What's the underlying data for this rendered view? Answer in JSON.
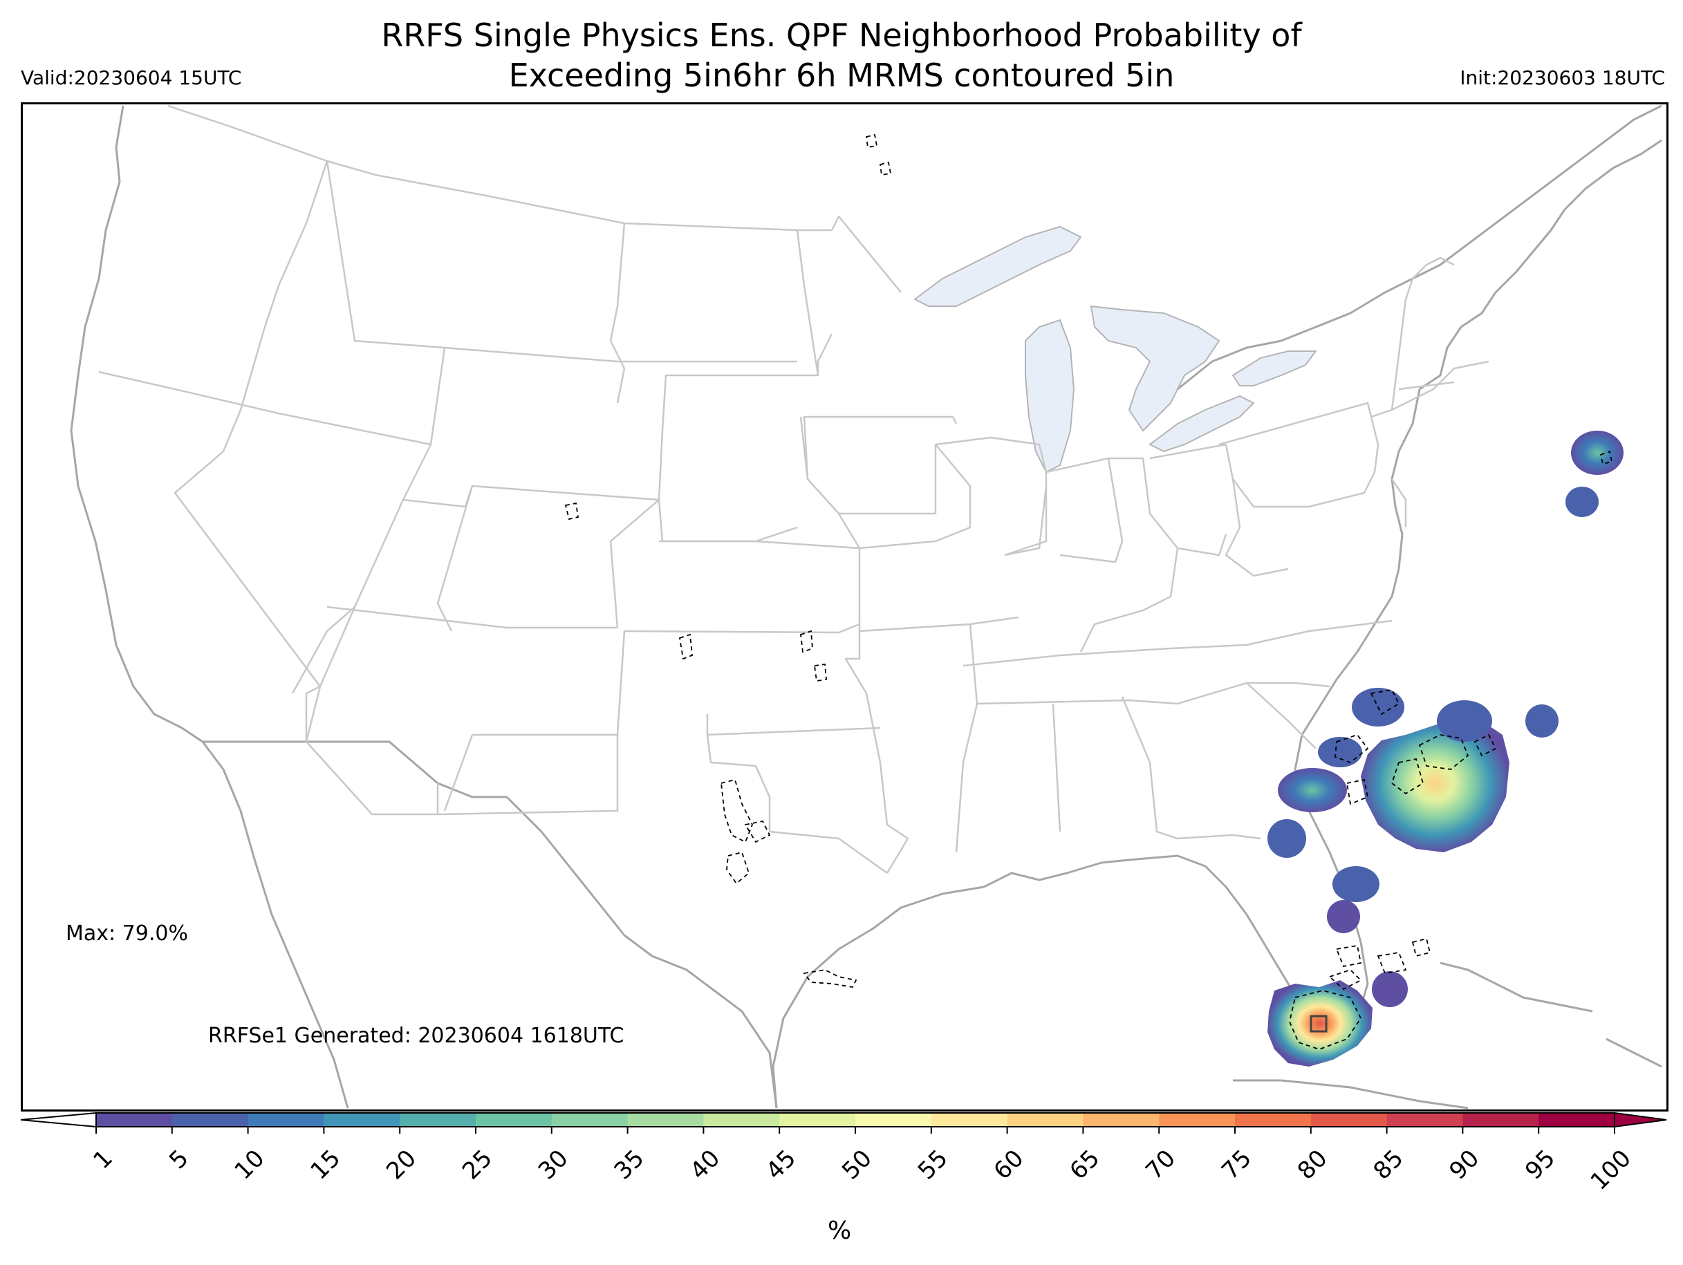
{
  "title_line1": "RRFS Single Physics Ens. QPF Neighborhood Probability of",
  "title_line2": "Exceeding 5in6hr 6h MRMS contoured 5in",
  "valid_label": "Valid:20230604 15UTC",
  "init_label": "Init:20230603 18UTC",
  "max_label": "Max: 79.0%",
  "generated_label": "RRFSe1 Generated: 20230604 1618UTC",
  "colorbar": {
    "unit": "%",
    "ticks": [
      "1",
      "5",
      "10",
      "15",
      "20",
      "25",
      "30",
      "35",
      "40",
      "45",
      "50",
      "55",
      "60",
      "65",
      "70",
      "75",
      "80",
      "85",
      "90",
      "95",
      "100"
    ],
    "colors": [
      "#5e4fa2",
      "#4a61ab",
      "#3e7bb8",
      "#3f96b7",
      "#54aeab",
      "#6cc4a4",
      "#89d1a4",
      "#a8dda2",
      "#c8e99e",
      "#e3f3a0",
      "#f6f9ae",
      "#fee99b",
      "#fdd282",
      "#fcb66c",
      "#f99556",
      "#f2744a",
      "#e45a4a",
      "#d14050",
      "#b5234c",
      "#9e0142"
    ]
  },
  "map_colors": {
    "border": "#c8c8c8",
    "coast": "#a6a6a6",
    "lake_fill": "#e8eef8",
    "mrms_contour": "#000000"
  }
}
